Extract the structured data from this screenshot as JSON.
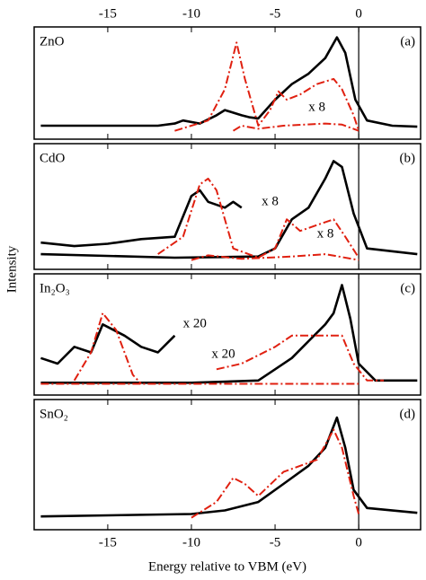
{
  "ylabel": "Intensity",
  "chart_data": [
    {
      "type": "line",
      "label": "ZnO",
      "panel": "(a)",
      "xlim": [
        -19.4,
        3.7
      ],
      "ylim": [
        -0.08,
        1
      ],
      "xticks": [
        -15,
        -10,
        -5,
        0
      ],
      "tick_labels": "top",
      "vline": 0,
      "series": [
        {
          "color": "#000000",
          "dash": false,
          "x": [
            -19,
            -15,
            -12,
            -11,
            -10.5,
            -9.5,
            -8.5,
            -8,
            -7,
            -6.5,
            -6,
            -5,
            -4,
            -3,
            -2,
            -1.3,
            -0.8,
            -0.2,
            0.5,
            2,
            3.5
          ],
          "values": [
            0.05,
            0.05,
            0.05,
            0.07,
            0.1,
            0.07,
            0.15,
            0.2,
            0.15,
            0.13,
            0.12,
            0.3,
            0.45,
            0.55,
            0.7,
            0.9,
            0.75,
            0.3,
            0.1,
            0.05,
            0.04
          ]
        },
        {
          "color": "#e02010",
          "dash": true,
          "x": [
            -11,
            -9,
            -8,
            -7.3,
            -6.8,
            -6,
            -5.3,
            -4.8,
            -4.3,
            -3.5,
            -2.5,
            -1.5,
            -1,
            -0.3,
            0
          ],
          "values": [
            0,
            0.1,
            0.4,
            0.85,
            0.5,
            0.05,
            0.2,
            0.38,
            0.3,
            0.35,
            0.45,
            0.5,
            0.4,
            0.15,
            0
          ]
        },
        {
          "color": "#e02010",
          "dash": true,
          "x": [
            -7.5,
            -7,
            -6,
            -4.5,
            -2,
            -1,
            0
          ],
          "values": [
            0,
            0.05,
            0.02,
            0.05,
            0.07,
            0.06,
            0
          ]
        }
      ],
      "annotations": [
        {
          "text": "x 8",
          "x": -3,
          "y": 0.22,
          "color": "#e02010"
        }
      ]
    },
    {
      "type": "line",
      "label": "CdO",
      "panel": "(b)",
      "xlim": [
        -19.4,
        3.7
      ],
      "ylim": [
        -0.08,
        1
      ],
      "xticks": [
        -15,
        -10,
        -5,
        0
      ],
      "tick_labels": "none",
      "vline": 0,
      "series": [
        {
          "color": "#000000",
          "dash": false,
          "x": [
            -19,
            -11,
            -6,
            -5,
            -4,
            -3,
            -2,
            -1.5,
            -1,
            -0.3,
            0.5,
            3.5
          ],
          "values": [
            0.05,
            0.02,
            0.03,
            0.1,
            0.35,
            0.45,
            0.7,
            0.85,
            0.8,
            0.4,
            0.1,
            0.05
          ]
        },
        {
          "color": "#000000",
          "dash": false,
          "x": [
            -19,
            -17,
            -15,
            -13,
            -11,
            -10,
            -9.5,
            -9,
            -8,
            -7.5,
            -7
          ],
          "values": [
            0.15,
            0.12,
            0.14,
            0.18,
            0.2,
            0.55,
            0.6,
            0.5,
            0.45,
            0.5,
            0.45
          ]
        },
        {
          "color": "#e02010",
          "dash": true,
          "x": [
            -12,
            -10.5,
            -9.5,
            -9,
            -8.5,
            -7.5,
            -6,
            -5,
            -4.3,
            -3.5,
            -2.5,
            -1.5,
            -0.8,
            0
          ],
          "values": [
            0.05,
            0.2,
            0.65,
            0.7,
            0.6,
            0.1,
            0.02,
            0.1,
            0.35,
            0.25,
            0.3,
            0.35,
            0.2,
            0.02
          ]
        },
        {
          "color": "#e02010",
          "dash": true,
          "x": [
            -10,
            -9,
            -7,
            -4,
            -2,
            0
          ],
          "values": [
            0,
            0.04,
            0.01,
            0.03,
            0.05,
            0
          ]
        }
      ],
      "annotations": [
        {
          "text": "x 8",
          "x": -5.8,
          "y": 0.5,
          "color": "#000000"
        },
        {
          "text": "x 8",
          "x": -2.5,
          "y": 0.22,
          "color": "#e02010"
        }
      ]
    },
    {
      "type": "line",
      "label": "In₂O₃",
      "panel": "(c)",
      "xlim": [
        -19.4,
        3.7
      ],
      "ylim": [
        -0.08,
        1
      ],
      "xticks": [
        -15,
        -10,
        -5,
        0
      ],
      "tick_labels": "none",
      "vline": 0,
      "series": [
        {
          "color": "#000000",
          "dash": false,
          "x": [
            -19,
            -10,
            -6,
            -5,
            -4,
            -3,
            -2,
            -1.5,
            -1,
            -0.5,
            0,
            1,
            3.5
          ],
          "values": [
            0.03,
            0.03,
            0.05,
            0.15,
            0.25,
            0.4,
            0.55,
            0.65,
            0.9,
            0.6,
            0.2,
            0.05,
            0.05
          ]
        },
        {
          "color": "#000000",
          "dash": false,
          "x": [
            -19,
            -18,
            -17,
            -16,
            -15.3,
            -14,
            -13,
            -12,
            -11
          ],
          "values": [
            0.25,
            0.2,
            0.35,
            0.3,
            0.55,
            0.45,
            0.35,
            0.3,
            0.45
          ]
        },
        {
          "color": "#e02010",
          "dash": true,
          "x": [
            -17,
            -16,
            -15.3,
            -14.5,
            -13.5,
            -13
          ],
          "values": [
            0.05,
            0.3,
            0.65,
            0.5,
            0.1,
            0.02
          ]
        },
        {
          "color": "#e02010",
          "dash": true,
          "x": [
            -8.5,
            -7,
            -5,
            -4,
            -2,
            -1,
            -0.3,
            0.5,
            1.5
          ],
          "values": [
            0.15,
            0.2,
            0.35,
            0.45,
            0.45,
            0.45,
            0.2,
            0.05,
            0.05
          ]
        },
        {
          "color": "#e02010",
          "dash": true,
          "x": [
            -19,
            0
          ],
          "values": [
            0.02,
            0.02
          ]
        }
      ],
      "annotations": [
        {
          "text": "x 20",
          "x": -10.5,
          "y": 0.55,
          "color": "#000000"
        },
        {
          "text": "x 20",
          "x": -8.8,
          "y": 0.28,
          "color": "#e02010"
        }
      ]
    },
    {
      "type": "line",
      "label": "SnO₂",
      "panel": "(d)",
      "xlim": [
        -19.4,
        3.7
      ],
      "ylim": [
        -0.08,
        1
      ],
      "xticks": [
        -15,
        -10,
        -5,
        0
      ],
      "tick_labels": "bottom",
      "xlabel": "Energy relative to VBM (eV)",
      "vline": 0,
      "series": [
        {
          "color": "#000000",
          "dash": false,
          "x": [
            -19,
            -10,
            -8,
            -6,
            -4.5,
            -3,
            -2,
            -1.3,
            -0.8,
            -0.3,
            0.5,
            3.5
          ],
          "values": [
            0.03,
            0.05,
            0.08,
            0.15,
            0.3,
            0.45,
            0.6,
            0.85,
            0.6,
            0.25,
            0.1,
            0.06
          ]
        },
        {
          "color": "#e02010",
          "dash": true,
          "x": [
            -10,
            -8.5,
            -7.5,
            -6.8,
            -6,
            -4.5,
            -3.5,
            -2.5,
            -1.5,
            -1,
            -0.3,
            0
          ],
          "values": [
            0.02,
            0.15,
            0.35,
            0.3,
            0.2,
            0.4,
            0.45,
            0.5,
            0.75,
            0.6,
            0.2,
            0.05
          ]
        }
      ],
      "annotations": []
    }
  ]
}
